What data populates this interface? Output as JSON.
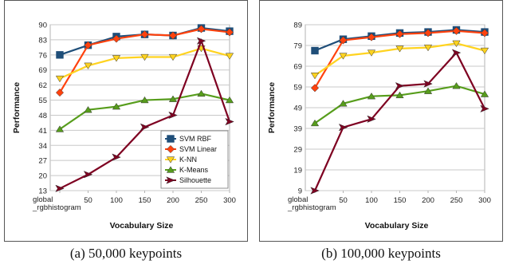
{
  "chart_data": [
    {
      "type": "line",
      "categories": [
        "global\n_rgbhistogram",
        "50",
        "100",
        "150",
        "200",
        "250",
        "300"
      ],
      "xlabel": "Vocabulary Size",
      "ylabel": "Performance",
      "yticks": [
        13,
        20,
        27,
        34,
        41,
        48,
        55,
        62,
        69,
        76,
        83,
        90
      ],
      "ylim": [
        13,
        90
      ],
      "grid": true,
      "legend": "inside-lower-right",
      "series": [
        {
          "name": "SVM RBF",
          "color": "#1f4e79",
          "marker": "square",
          "values": [
            76,
            80.5,
            84.5,
            85.5,
            85,
            88.5,
            87
          ]
        },
        {
          "name": "SVM Linear",
          "color": "#ff420e",
          "marker": "diamond",
          "values": [
            58.5,
            80.5,
            83.5,
            85.5,
            85,
            88,
            86.5
          ]
        },
        {
          "name": "K-NN",
          "color": "#ffd320",
          "marker": "triangle-down",
          "values": [
            65,
            71,
            74.5,
            75,
            75,
            79,
            75.5
          ]
        },
        {
          "name": "K-Means",
          "color": "#579d1c",
          "marker": "triangle-up",
          "values": [
            41.5,
            50.5,
            52,
            55,
            55.5,
            58,
            55
          ]
        },
        {
          "name": "Silhouette",
          "color": "#7e0021",
          "marker": "arrow",
          "values": [
            14,
            20.5,
            28.5,
            42.5,
            48,
            82.5,
            45
          ]
        }
      ],
      "caption": "(a)  50,000 keypoints"
    },
    {
      "type": "line",
      "categories": [
        "global\n_rgbhistogram",
        "50",
        "100",
        "150",
        "200",
        "250",
        "300"
      ],
      "xlabel": "Vocabulary Size",
      "ylabel": "Performance",
      "yticks": [
        9,
        19,
        29,
        39,
        49,
        59,
        69,
        79,
        89
      ],
      "ylim": [
        9,
        89
      ],
      "grid": true,
      "series": [
        {
          "name": "SVM RBF",
          "color": "#1f4e79",
          "marker": "square",
          "values": [
            76.5,
            82,
            83.5,
            85,
            85.5,
            86.5,
            85.5
          ]
        },
        {
          "name": "SVM Linear",
          "color": "#ff420e",
          "marker": "diamond",
          "values": [
            58.5,
            81.5,
            83,
            84.5,
            85,
            86,
            85
          ]
        },
        {
          "name": "K-NN",
          "color": "#ffd320",
          "marker": "triangle-down",
          "values": [
            64.5,
            74,
            75.5,
            77.5,
            78,
            80,
            76.5
          ]
        },
        {
          "name": "K-Means",
          "color": "#579d1c",
          "marker": "triangle-up",
          "values": [
            41.5,
            51,
            54.5,
            55,
            57,
            59.5,
            55.5
          ]
        },
        {
          "name": "Silhouette",
          "color": "#7e0021",
          "marker": "arrow",
          "values": [
            9,
            39.5,
            43.5,
            59.5,
            60.5,
            75.5,
            48.5
          ]
        }
      ],
      "caption": "(b)  100,000 keypoints"
    }
  ]
}
